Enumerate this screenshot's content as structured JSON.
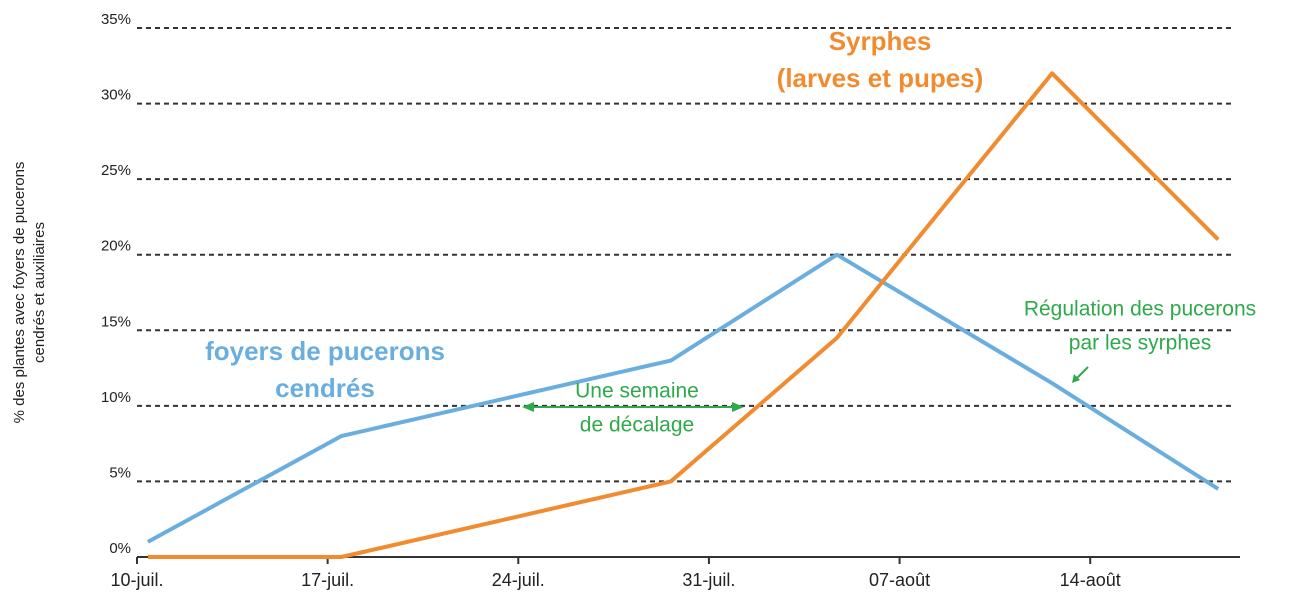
{
  "chart_data": {
    "type": "line",
    "y_label": [
      "% des plantes avec foyers de pucerons",
      "cendrés et auxiliaires"
    ],
    "x": [
      10.4,
      17.5,
      29.6,
      35.7,
      43.6,
      49.7
    ],
    "xlim": [
      10,
      50.5
    ],
    "xticks": [
      {
        "value": 10,
        "label": "10-juil."
      },
      {
        "value": 17,
        "label": "17-juil."
      },
      {
        "value": 24,
        "label": "24-juil."
      },
      {
        "value": 31,
        "label": "31-juil."
      },
      {
        "value": 38,
        "label": "07-août"
      },
      {
        "value": 45,
        "label": "14-août"
      }
    ],
    "ylim": [
      0,
      35
    ],
    "yticks": [
      {
        "value": 0,
        "label": "0%"
      },
      {
        "value": 5,
        "label": "5%"
      },
      {
        "value": 10,
        "label": "10%"
      },
      {
        "value": 15,
        "label": "15%"
      },
      {
        "value": 20,
        "label": "20%"
      },
      {
        "value": 25,
        "label": "25%"
      },
      {
        "value": 30,
        "label": "30%"
      },
      {
        "value": 35,
        "label": "35%"
      }
    ],
    "grid": true,
    "series": [
      {
        "name": [
          "foyers de pucerons",
          "cendrés"
        ],
        "color": "#6aaee0",
        "values": [
          1,
          8,
          13,
          20,
          11.5,
          4.5
        ]
      },
      {
        "name": [
          "Syrphes",
          "(larves et pupes)"
        ],
        "color": "#f28b30",
        "values": [
          0,
          0,
          5,
          14.5,
          32,
          21
        ]
      }
    ],
    "annotations": [
      {
        "text": [
          "Une semaine",
          "de décalage"
        ],
        "color": "#2eaa4a"
      },
      {
        "text": [
          "Régulation des pucerons",
          "par les syrphes"
        ],
        "color": "#2eaa4a"
      }
    ]
  }
}
